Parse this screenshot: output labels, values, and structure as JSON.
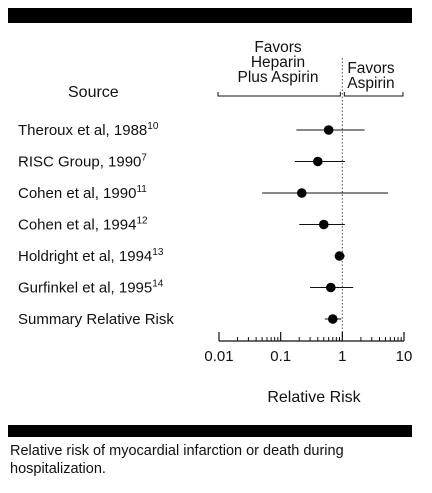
{
  "chart_data": {
    "type": "forest",
    "source_header": "Source",
    "favors_left": [
      "Favors",
      "Heparin",
      "Plus Aspirin"
    ],
    "favors_right": [
      "Favors",
      "Aspirin"
    ],
    "xlabel": "Relative Risk",
    "xscale": "log",
    "xlim": [
      0.01,
      10
    ],
    "xticks": [
      "0.01",
      "0.1",
      "1",
      "10"
    ],
    "reference_line": 1,
    "studies": [
      {
        "label": "Theroux et al, 1988",
        "ref": "10",
        "rr": 0.6,
        "ci_low": 0.18,
        "ci_high": 2.3
      },
      {
        "label": "RISC Group, 1990",
        "ref": "7",
        "rr": 0.4,
        "ci_low": 0.17,
        "ci_high": 1.1
      },
      {
        "label": "Cohen et al, 1990",
        "ref": "11",
        "rr": 0.22,
        "ci_low": 0.05,
        "ci_high": 5.5
      },
      {
        "label": "Cohen et al, 1994",
        "ref": "12",
        "rr": 0.5,
        "ci_low": 0.2,
        "ci_high": 1.1
      },
      {
        "label": "Holdright et al, 1994",
        "ref": "13",
        "rr": 0.9,
        "ci_low": 0.75,
        "ci_high": 1.1
      },
      {
        "label": "Gurfinkel et al, 1995",
        "ref": "14",
        "rr": 0.65,
        "ci_low": 0.3,
        "ci_high": 1.5
      },
      {
        "label": "Summary Relative Risk",
        "ref": "",
        "rr": 0.7,
        "ci_low": 0.52,
        "ci_high": 0.96
      }
    ]
  },
  "caption": "Relative risk of myocardial infarction or death during hospitalization."
}
